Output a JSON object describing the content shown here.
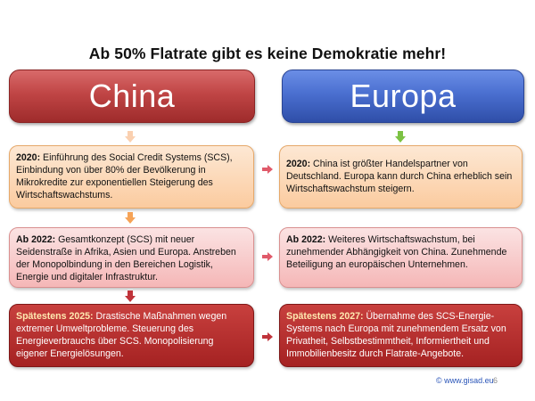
{
  "slide": {
    "title": "Ab 50% Flatrate gibt es keine Demokratie mehr!",
    "columns": {
      "china": {
        "header": "China"
      },
      "europa": {
        "header": "Europa"
      }
    },
    "china_boxes": [
      {
        "year": "2020:",
        "text": " Einführung des Social Credit Systems (SCS), Einbindung von über 80% der Bevölkerung in Mikrokredite zur exponentiellen Steigerung des Wirtschaftswachstums."
      },
      {
        "year": "Ab 2022:",
        "text": " Gesamtkonzept (SCS) mit neuer Seidenstraße in Afrika, Asien und Europa. Anstreben der Monopolbindung in den Bereichen Logistik, Energie und digitaler Infrastruktur."
      },
      {
        "year": "Spätestens 2025:",
        "text": " Drastische Maßnahmen wegen extremer Umweltprobleme. Steuerung des Energieverbrauchs über SCS. Monopolisierung eigener Energielösungen."
      }
    ],
    "europa_boxes": [
      {
        "year": "2020:",
        "text": " China ist größter Handelspartner von Deutschland. Europa kann durch China erheblich sein Wirtschaftswachstum steigern."
      },
      {
        "year": "Ab 2022:",
        "text": " Weiteres Wirtschaftswachstum, bei zunehmender Abhängigkeit von China. Zunehmende Beteiligung an europäischen Unternehmen."
      },
      {
        "year": "Spätestens 2027:",
        "text": " Übernahme des SCS-Energie-Systems nach Europa mit zunehmendem Ersatz von Privatheit, Selbstbestimmtheit, Informiertheit und Immobilienbesitz durch Flatrate-Angebote."
      }
    ],
    "footer": {
      "link": "© www.gisad.eu",
      "page_number": "6"
    },
    "colors": {
      "china_header": "#c04545",
      "europa_header": "#4a6fd0",
      "arrow_orange": "#f6a356",
      "arrow_green": "#7cc243",
      "arrow_red": "#c0333a",
      "arrow_peach": "#fad0b0"
    }
  }
}
